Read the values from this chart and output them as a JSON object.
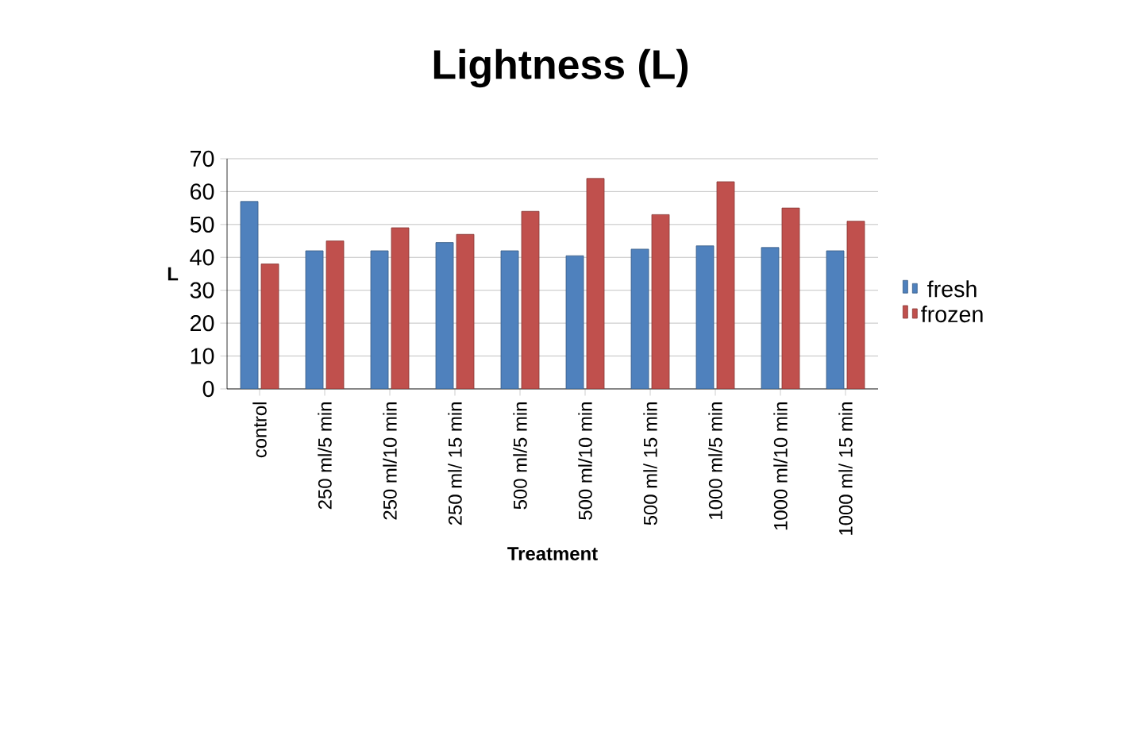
{
  "chart_data": {
    "type": "bar",
    "title": "Lightness (L)",
    "xlabel": "Treatment",
    "ylabel": "L",
    "categories": [
      "control",
      "250 ml/5 min",
      "250 ml/10 min",
      "250 ml/ 15 min",
      "500 ml/5 min",
      "500 ml/10 min",
      "500 ml/ 15 min",
      "1000 ml/5 min",
      "1000 ml/10 min",
      "1000 ml/ 15 min"
    ],
    "series": [
      {
        "name": "fresh",
        "color": "#4f81bd",
        "values": [
          57,
          42,
          42,
          44.5,
          42,
          40.5,
          42.5,
          43.5,
          43,
          42
        ]
      },
      {
        "name": "frozen",
        "color": "#c0504d",
        "values": [
          38,
          45,
          49,
          47,
          54,
          64,
          53,
          63,
          55,
          51
        ]
      }
    ],
    "ylim": [
      0,
      70
    ],
    "yticks": [
      0,
      10,
      20,
      30,
      40,
      50,
      60,
      70
    ],
    "grid": "y",
    "legend": "right"
  }
}
